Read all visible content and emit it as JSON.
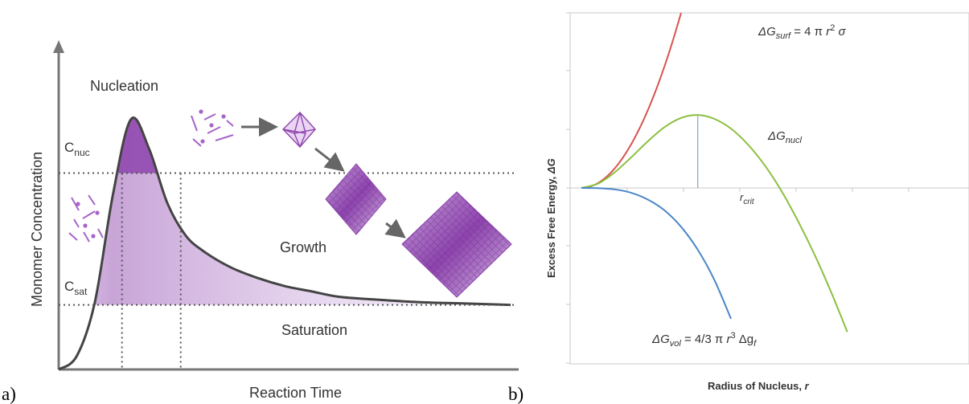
{
  "panels": {
    "a": {
      "letter": "a)"
    },
    "b": {
      "letter": "b)"
    }
  },
  "chart_data": [
    {
      "type": "area",
      "panel": "a",
      "xlabel": "Reaction Time",
      "ylabel": "Monomer Concentration",
      "levels": [
        {
          "name": "C_nuc",
          "label_main": "C",
          "label_sub": "nuc",
          "value": 0.73
        },
        {
          "name": "C_sat",
          "label_main": "C",
          "label_sub": "sat",
          "value": 0.24
        }
      ],
      "curve": {
        "x": [
          0.0,
          0.04,
          0.08,
          0.12,
          0.16,
          0.2,
          0.24,
          0.28,
          0.32,
          0.38,
          0.44,
          0.5,
          0.56,
          0.62,
          0.7,
          0.8,
          0.9,
          1.0
        ],
        "y": [
          0.0,
          0.05,
          0.25,
          0.65,
          0.93,
          0.82,
          0.62,
          0.5,
          0.44,
          0.38,
          0.34,
          0.31,
          0.29,
          0.27,
          0.26,
          0.25,
          0.245,
          0.24
        ]
      },
      "dotted_x": [
        0.14,
        0.27
      ],
      "annotations": {
        "nucleation": "Nucleation",
        "growth": "Growth",
        "saturation": "Saturation"
      },
      "colors": {
        "curve": "#444444",
        "fill": "#9b59b6",
        "accent": "#8e44ad"
      }
    },
    {
      "type": "line",
      "panel": "b",
      "xlabel_main": "Radius of Nucleus, ",
      "xlabel_var": "r",
      "ylabel_main": "Excess Free Energy, ",
      "ylabel_var": "ΔG",
      "x_marker": {
        "label_main": "r",
        "label_sub": "crit"
      },
      "series": [
        {
          "name": "ΔG_surf = 4 π r² σ",
          "label_parts": {
            "a": "ΔG",
            "sub": "surf",
            "b": " = 4 π ",
            "c": "r",
            "sup": "2",
            "d": " σ"
          },
          "color": "#d9544f",
          "x": [
            0,
            0.5,
            1,
            1.5,
            2,
            2.5,
            3,
            3.5,
            4,
            4.5,
            5,
            5.5,
            6
          ],
          "y": [
            0,
            0.25,
            1.0,
            2.25,
            4.0,
            6.25,
            9.0,
            12.25,
            16.0,
            20.25,
            25.0,
            30.25,
            36.0
          ]
        },
        {
          "name": "ΔG_nucl",
          "label_parts": {
            "a": "ΔG",
            "sub": "nucl"
          },
          "color": "#8cbf3f",
          "x": [
            0,
            1,
            2,
            3,
            4,
            5,
            6,
            7,
            8,
            9,
            10,
            11,
            12,
            13,
            14,
            15,
            16,
            17,
            18,
            19
          ],
          "y": [
            0,
            0.9,
            3.2,
            6.3,
            9.6,
            12.5,
            14.4,
            15.0,
            14.2,
            12.2,
            9.0,
            4.8,
            -0.4,
            -6.6,
            -13.5,
            -21.2,
            -29.6,
            -38.5,
            -48.0,
            -57.5
          ]
        },
        {
          "name": "ΔG_vol = 4/3 π r³ Δg_f",
          "label_parts": {
            "a": "ΔG",
            "sub": "vol",
            "b": " = 4/3 π ",
            "c": "r",
            "sup": "3",
            "d": " Δg",
            "sub2": "f"
          },
          "color": "#4a86c8",
          "x": [
            0,
            1,
            2,
            3,
            4,
            5,
            6,
            7,
            8,
            9,
            10,
            11,
            12,
            13,
            14,
            15
          ],
          "y": [
            0,
            -0.05,
            -0.3,
            -1.0,
            -2.4,
            -4.6,
            -8.0,
            -12.7,
            -18.9,
            -26.9,
            -36.9,
            -49.1,
            -63.7,
            -81.0,
            -101.2,
            -124.0
          ]
        }
      ],
      "r_crit": 7.0
    }
  ]
}
